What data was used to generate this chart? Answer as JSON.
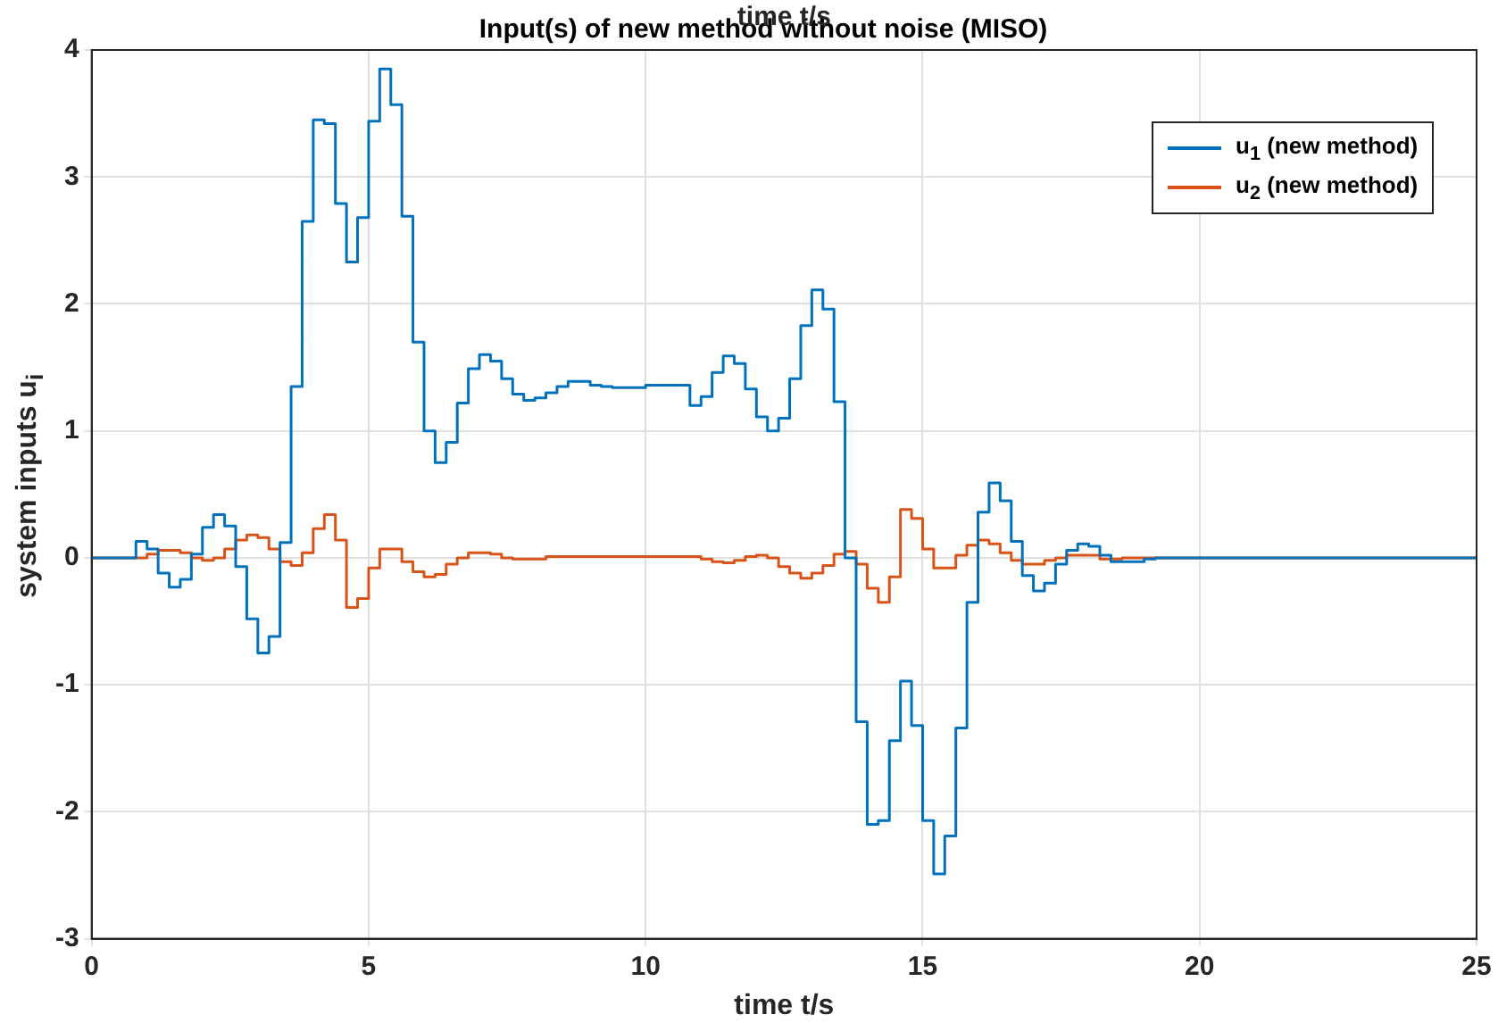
{
  "chart_data": {
    "type": "step",
    "title": "Input(s) of new method without noise (MISO)",
    "annotations": [
      "time t/s"
    ],
    "xlabel": "time t/s",
    "ylabel": "system inputs u$_{i}$",
    "xlim": [
      0,
      25
    ],
    "xticks": [
      0,
      5,
      10,
      15,
      20,
      25
    ],
    "ylim": [
      -3,
      4
    ],
    "yticks": [
      -3,
      -2,
      -1,
      0,
      1,
      2,
      3,
      4
    ],
    "grid": true,
    "legend": "top right",
    "line_style": "solid",
    "marker": "none",
    "series": [
      {
        "name": "u$_{1}$ (new method)",
        "color": "#0072bd",
        "x": [
          0,
          0.8,
          1.0,
          1.2,
          1.4,
          1.6,
          1.8,
          2.0,
          2.2,
          2.4,
          2.6,
          2.8,
          3.0,
          3.2,
          3.4,
          3.6,
          3.8,
          4.0,
          4.2,
          4.4,
          4.6,
          4.8,
          5.0,
          5.2,
          5.4,
          5.6,
          5.8,
          6.0,
          6.2,
          6.4,
          6.6,
          6.8,
          7.0,
          7.2,
          7.4,
          7.6,
          7.8,
          8.0,
          8.2,
          8.4,
          8.6,
          9.0,
          9.2,
          9.4,
          10.0,
          10.8,
          11.0,
          11.2,
          11.4,
          11.6,
          11.8,
          12.0,
          12.2,
          12.4,
          12.6,
          12.8,
          13.0,
          13.2,
          13.4,
          13.6,
          13.8,
          14.0,
          14.2,
          14.4,
          14.6,
          14.8,
          15.0,
          15.2,
          15.4,
          15.6,
          15.8,
          16.0,
          16.2,
          16.4,
          16.6,
          16.8,
          17.0,
          17.2,
          17.4,
          17.6,
          17.8,
          18.0,
          18.2,
          18.4,
          19.0,
          19.2,
          25
        ],
        "values": [
          0,
          0.13,
          0.07,
          -0.12,
          -0.23,
          -0.17,
          0.03,
          0.24,
          0.34,
          0.25,
          -0.07,
          -0.48,
          -0.75,
          -0.62,
          0.12,
          1.35,
          2.65,
          3.45,
          3.42,
          2.79,
          2.33,
          2.68,
          3.44,
          3.85,
          3.57,
          2.69,
          1.7,
          1.0,
          0.75,
          0.91,
          1.22,
          1.49,
          1.6,
          1.55,
          1.41,
          1.29,
          1.24,
          1.26,
          1.3,
          1.35,
          1.39,
          1.36,
          1.35,
          1.34,
          1.36,
          1.2,
          1.27,
          1.46,
          1.59,
          1.53,
          1.33,
          1.11,
          1.0,
          1.1,
          1.41,
          1.83,
          2.11,
          1.96,
          1.23,
          0.0,
          -1.29,
          -2.1,
          -2.07,
          -1.44,
          -0.97,
          -1.32,
          -2.07,
          -2.49,
          -2.19,
          -1.34,
          -0.35,
          0.36,
          0.59,
          0.45,
          0.13,
          -0.14,
          -0.26,
          -0.2,
          -0.05,
          0.06,
          0.11,
          0.09,
          0.02,
          -0.03,
          -0.01,
          0.0,
          0
        ]
      },
      {
        "name": "u$_{2}$ (new method)",
        "color": "#d95319",
        "x": [
          0,
          1.0,
          1.2,
          1.6,
          1.8,
          2.0,
          2.2,
          2.4,
          2.6,
          2.8,
          3.0,
          3.2,
          3.4,
          3.6,
          3.8,
          4.0,
          4.2,
          4.4,
          4.6,
          4.8,
          5.0,
          5.2,
          5.6,
          5.8,
          6.0,
          6.2,
          6.4,
          6.6,
          6.8,
          7.2,
          7.4,
          7.6,
          8.2,
          11.0,
          11.2,
          11.4,
          11.6,
          11.8,
          12.0,
          12.2,
          12.4,
          12.6,
          12.8,
          13.0,
          13.2,
          13.4,
          13.6,
          13.8,
          14.0,
          14.2,
          14.4,
          14.6,
          14.8,
          15.0,
          15.2,
          15.6,
          15.8,
          16.0,
          16.2,
          16.4,
          16.6,
          16.8,
          17.2,
          17.4,
          17.6,
          18.2,
          18.6,
          25
        ],
        "values": [
          0,
          0.03,
          0.06,
          0.04,
          0.0,
          -0.02,
          0.0,
          0.07,
          0.14,
          0.18,
          0.16,
          0.07,
          -0.03,
          -0.06,
          0.04,
          0.23,
          0.34,
          0.14,
          -0.39,
          -0.32,
          -0.08,
          0.07,
          -0.03,
          -0.11,
          -0.15,
          -0.13,
          -0.05,
          0.0,
          0.04,
          0.03,
          0.0,
          -0.01,
          0.01,
          -0.01,
          -0.03,
          -0.04,
          -0.02,
          0.01,
          0.02,
          0.0,
          -0.07,
          -0.12,
          -0.16,
          -0.12,
          -0.06,
          0.03,
          0.05,
          -0.05,
          -0.24,
          -0.35,
          -0.15,
          0.38,
          0.31,
          0.07,
          -0.08,
          0.02,
          0.1,
          0.14,
          0.11,
          0.04,
          -0.02,
          -0.05,
          -0.02,
          0.0,
          0.02,
          -0.01,
          0.0,
          0
        ]
      }
    ]
  }
}
